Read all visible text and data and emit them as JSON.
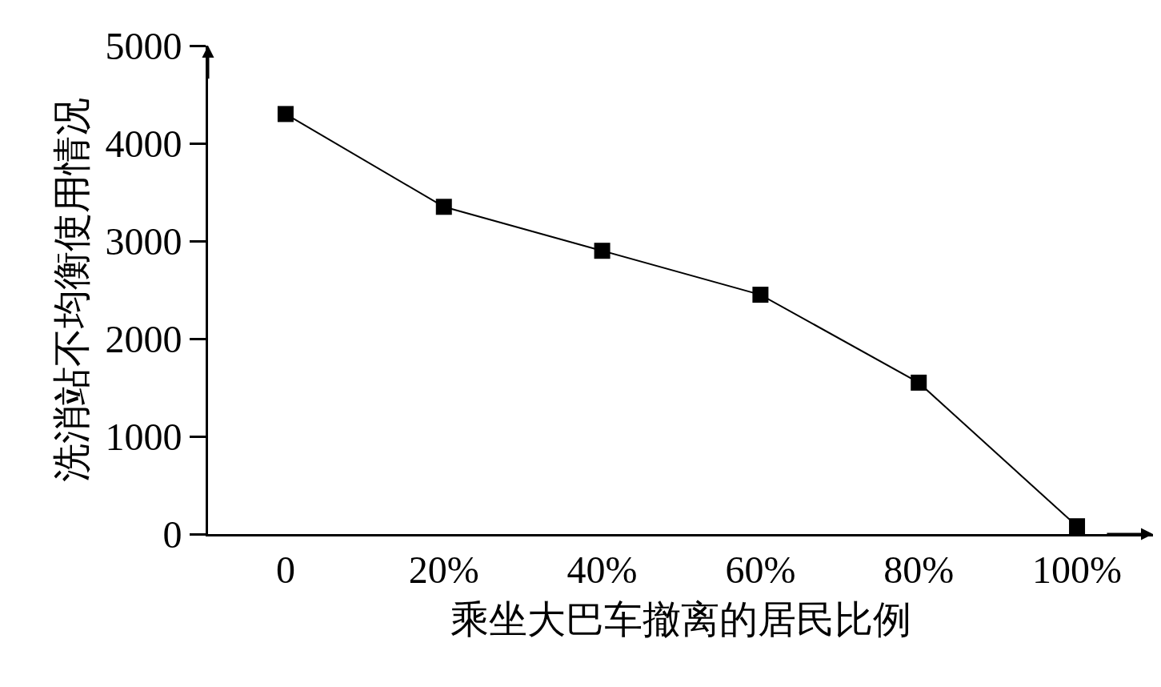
{
  "chart_data": {
    "type": "line",
    "xlabel": "乘坐大巴车撤离的居民比例",
    "ylabel": "洗消站不均衡使用情况",
    "categories": [
      "0",
      "20%",
      "40%",
      "60%",
      "80%",
      "100%"
    ],
    "series": [
      {
        "color": "#000000",
        "values": [
          4300,
          3350,
          2900,
          2450,
          1550,
          80
        ]
      }
    ],
    "ylim": [
      0,
      5000
    ],
    "yticks": [
      0,
      1000,
      2000,
      3000,
      4000,
      5000
    ],
    "marker": "square",
    "line_style": "solid"
  }
}
